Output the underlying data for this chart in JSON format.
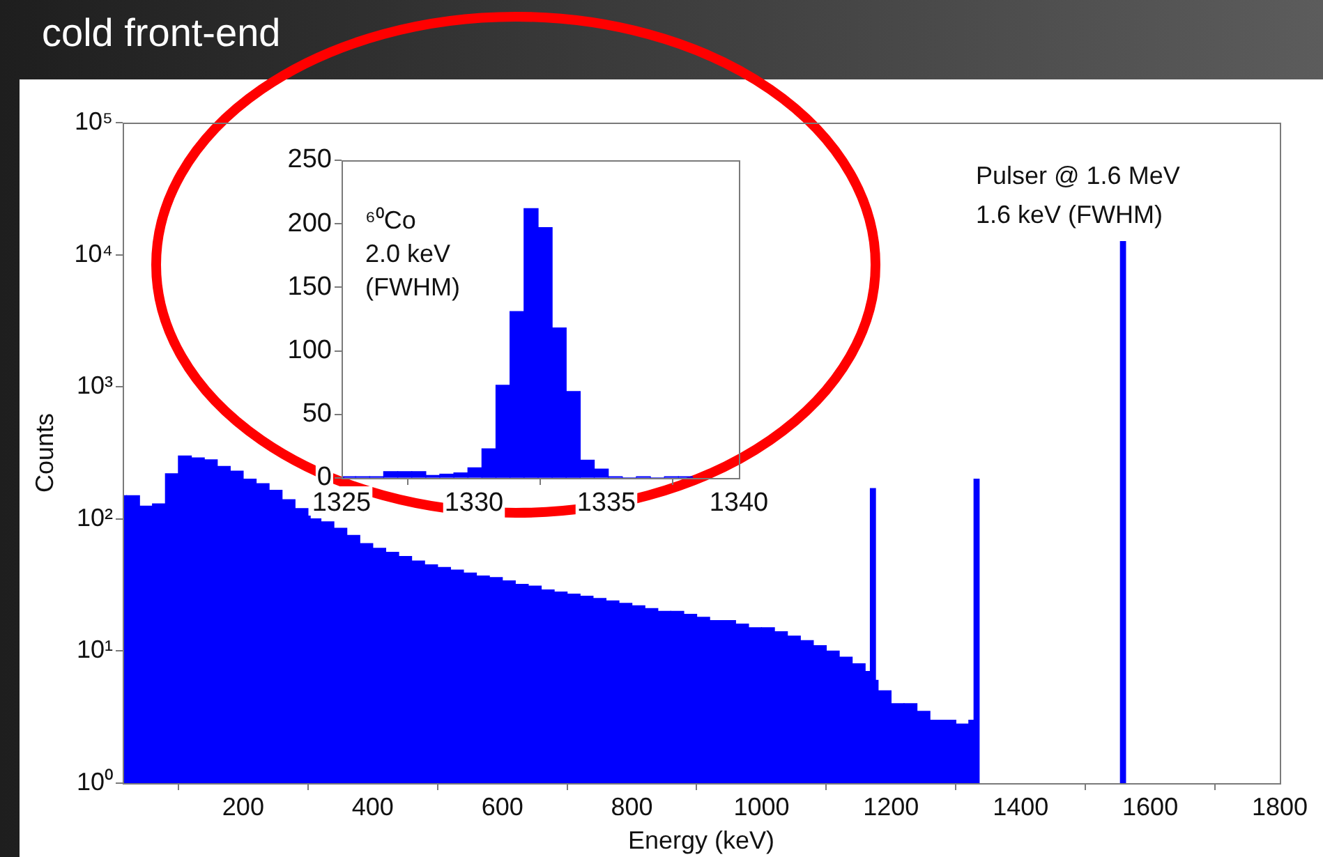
{
  "chart_data": [
    {
      "type": "histogram",
      "title": "cold front-end",
      "xlabel": "Energy (keV)",
      "ylabel": "Counts",
      "log": "y",
      "color": "#0000ff",
      "bins": [
        14,
        20,
        40,
        60,
        80,
        100,
        120,
        140,
        160,
        180,
        200,
        220,
        240,
        260,
        280,
        300,
        320,
        340,
        360,
        380,
        400,
        420,
        440,
        460,
        480,
        500,
        520,
        540,
        560,
        580,
        600,
        620,
        640,
        660,
        680,
        700,
        720,
        740,
        760,
        780,
        800,
        820,
        840,
        860,
        880,
        900,
        920,
        940,
        960,
        980,
        1000,
        1020,
        1040,
        1060,
        1080,
        1100,
        1120,
        1140,
        1160,
        1168,
        1176,
        1180,
        1200,
        1220,
        1240,
        1260,
        1280,
        1300,
        1320,
        1328,
        1336,
        1554,
        1562
      ],
      "values": [
        150,
        150,
        125,
        130,
        220,
        300,
        290,
        280,
        250,
        230,
        200,
        185,
        165,
        140,
        120,
        105,
        95,
        85,
        75,
        65,
        60,
        56,
        52,
        48,
        45,
        43,
        41,
        39,
        37,
        36,
        34,
        32,
        31,
        29,
        28,
        27,
        26,
        25,
        24,
        23,
        22,
        21,
        20,
        20,
        19,
        18,
        17,
        17,
        16,
        15,
        15,
        14,
        13,
        12,
        11,
        10,
        9,
        8,
        7,
        170,
        6,
        5,
        4,
        4,
        3.5,
        3,
        3,
        2.8,
        3,
        200,
        null,
        12600
      ],
      "xlim": [
        14,
        1800
      ],
      "xticks": [
        200,
        400,
        600,
        800,
        1000,
        1200,
        1400,
        1600,
        1800
      ],
      "ylim": [
        1,
        100000
      ],
      "yticks": [
        {
          "value": 1,
          "label": "10⁰"
        },
        {
          "value": 10,
          "label": "10¹"
        },
        {
          "value": 100,
          "label": "10²"
        },
        {
          "value": 1000,
          "label": "10³"
        },
        {
          "value": 10000,
          "label": "10⁴"
        },
        {
          "value": 100000,
          "label": "10⁵"
        }
      ],
      "annotations": [
        "Pulser @ 1.6 MeV",
        "1.6 keV (FWHM)"
      ]
    },
    {
      "type": "histogram",
      "color": "#0000ff",
      "bins": [
        1325,
        1325.53,
        1326.06,
        1326.59,
        1327.12,
        1327.65,
        1328.18,
        1328.71,
        1329.24,
        1329.77,
        1330.3,
        1330.83,
        1331.36,
        1331.89,
        1332.42,
        1332.95,
        1333.48,
        1334.01,
        1334.54,
        1335.07,
        1335.6,
        1336.13,
        1336.66,
        1337.19,
        1337.72,
        1338.25
      ],
      "values": [
        1,
        1,
        1,
        5,
        5,
        5,
        2,
        3,
        4,
        8,
        23,
        73,
        131,
        212,
        197,
        118,
        68,
        14,
        7,
        1,
        0,
        1,
        0,
        1,
        1
      ],
      "xlim": [
        1325,
        1340
      ],
      "xticks": [
        1325,
        1330,
        1335,
        1340
      ],
      "ylim": [
        0,
        250
      ],
      "yticks": [
        0,
        50,
        100,
        150,
        200,
        250
      ],
      "annotations": [
        "⁶⁰Co",
        "2.0 keV",
        "(FWHM)"
      ]
    }
  ]
}
